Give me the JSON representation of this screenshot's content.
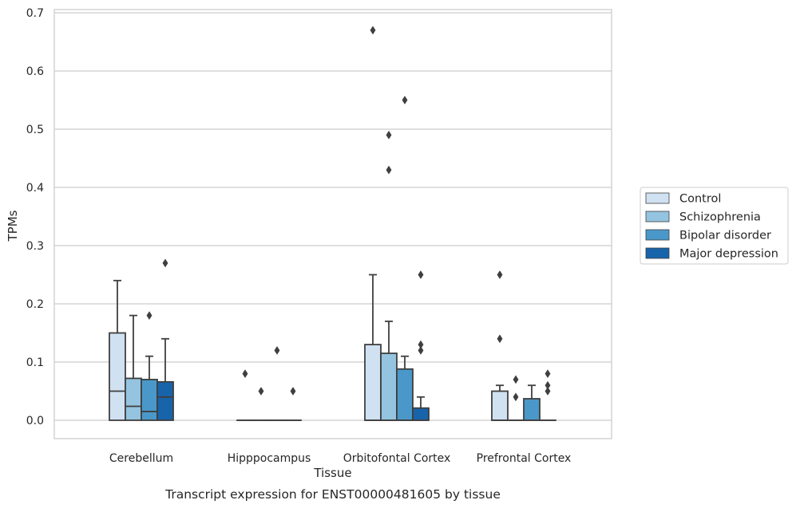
{
  "chart_data": {
    "type": "box",
    "title": "",
    "caption": "Transcript expression for ENST00000481605 by tissue",
    "xlabel": "Tissue",
    "ylabel": "TPMs",
    "ylim": [
      -0.032,
      0.705
    ],
    "yticks": [
      0.0,
      0.1,
      0.2,
      0.3,
      0.4,
      0.5,
      0.6,
      0.7
    ],
    "ytick_labels": [
      "0.0",
      "0.1",
      "0.2",
      "0.3",
      "0.4",
      "0.5",
      "0.6",
      "0.7"
    ],
    "grid": "horizontal",
    "legend_position": "right",
    "categories": [
      "Cerebellum",
      "Hipppocampus",
      "Orbitofontal Cortex",
      "Prefrontal Cortex"
    ],
    "series": [
      {
        "name": "Control",
        "color": "#d0e1f2",
        "boxes": [
          {
            "q1": 0,
            "median": 0.05,
            "q3": 0.15,
            "whisker_low": 0,
            "whisker_high": 0.24,
            "outliers": []
          },
          {
            "q1": 0,
            "median": 0,
            "q3": 0,
            "whisker_low": 0,
            "whisker_high": 0,
            "outliers": [
              0.08
            ]
          },
          {
            "q1": 0,
            "median": 0,
            "q3": 0.13,
            "whisker_low": 0,
            "whisker_high": 0.25,
            "outliers": [
              0.67
            ]
          },
          {
            "q1": 0,
            "median": 0,
            "q3": 0.05,
            "whisker_low": 0,
            "whisker_high": 0.06,
            "outliers": [
              0.14,
              0.25
            ]
          }
        ]
      },
      {
        "name": "Schizophrenia",
        "color": "#94c4df",
        "boxes": [
          {
            "q1": 0,
            "median": 0.024,
            "q3": 0.072,
            "whisker_low": 0,
            "whisker_high": 0.18,
            "outliers": []
          },
          {
            "q1": 0,
            "median": 0,
            "q3": 0,
            "whisker_low": 0,
            "whisker_high": 0,
            "outliers": [
              0.05
            ]
          },
          {
            "q1": 0,
            "median": 0,
            "q3": 0.115,
            "whisker_low": 0,
            "whisker_high": 0.17,
            "outliers": [
              0.43,
              0.49
            ]
          },
          {
            "q1": 0,
            "median": 0,
            "q3": 0,
            "whisker_low": 0,
            "whisker_high": 0,
            "outliers": [
              0.04,
              0.07
            ]
          }
        ]
      },
      {
        "name": "Bipolar disorder",
        "color": "#4a98c9",
        "boxes": [
          {
            "q1": 0,
            "median": 0.015,
            "q3": 0.07,
            "whisker_low": 0,
            "whisker_high": 0.11,
            "outliers": [
              0.18
            ]
          },
          {
            "q1": 0,
            "median": 0,
            "q3": 0,
            "whisker_low": 0,
            "whisker_high": 0,
            "outliers": [
              0.12
            ]
          },
          {
            "q1": 0,
            "median": 0,
            "q3": 0.088,
            "whisker_low": 0,
            "whisker_high": 0.11,
            "outliers": [
              0.55
            ]
          },
          {
            "q1": 0,
            "median": 0,
            "q3": 0.037,
            "whisker_low": 0,
            "whisker_high": 0.06,
            "outliers": []
          }
        ]
      },
      {
        "name": "Major depression",
        "color": "#1764ab",
        "boxes": [
          {
            "q1": 0,
            "median": 0.04,
            "q3": 0.066,
            "whisker_low": 0,
            "whisker_high": 0.14,
            "outliers": [
              0.27
            ]
          },
          {
            "q1": 0,
            "median": 0,
            "q3": 0,
            "whisker_low": 0,
            "whisker_high": 0,
            "outliers": [
              0.05
            ]
          },
          {
            "q1": 0,
            "median": 0,
            "q3": 0.021,
            "whisker_low": 0,
            "whisker_high": 0.04,
            "outliers": [
              0.12,
              0.13,
              0.25
            ]
          },
          {
            "q1": 0,
            "median": 0,
            "q3": 0,
            "whisker_low": 0,
            "whisker_high": 0,
            "outliers": [
              0.05,
              0.06,
              0.08
            ]
          }
        ]
      }
    ]
  }
}
